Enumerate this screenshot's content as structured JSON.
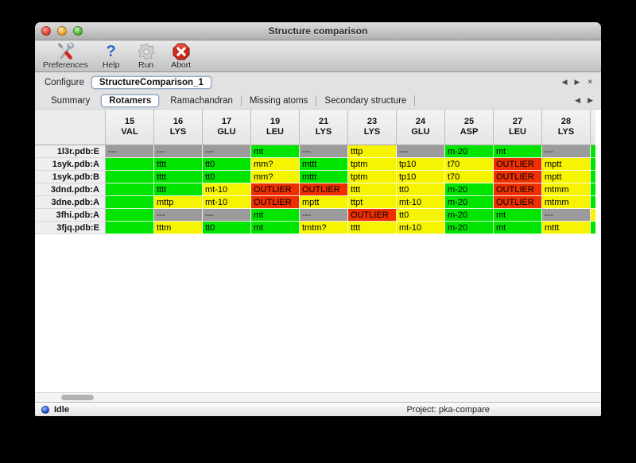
{
  "window": {
    "title": "Structure comparison"
  },
  "toolbar": {
    "items": [
      {
        "label": "Preferences",
        "icon": "tools-icon"
      },
      {
        "label": "Help",
        "icon": "help-icon"
      },
      {
        "label": "Run",
        "icon": "gear-icon"
      },
      {
        "label": "Abort",
        "icon": "abort-icon"
      }
    ],
    "help_glyph": "?"
  },
  "configure": {
    "label": "Configure",
    "value": "StructureComparison_1"
  },
  "nav": {
    "left_arrow": "◀",
    "right_arrow": "▶",
    "close": "✕"
  },
  "tabs": {
    "items": [
      "Summary",
      "Rotamers",
      "Ramachandran",
      "Missing atoms",
      "Secondary structure"
    ],
    "active": "Rotamers"
  },
  "table": {
    "palette": {
      "green": "#00e400",
      "yellow": "#f6f400",
      "red": "#ee3000",
      "gray": "#9b9b9b"
    },
    "columns": [
      {
        "num": "15",
        "res": "VAL"
      },
      {
        "num": "16",
        "res": "LYS"
      },
      {
        "num": "17",
        "res": "GLU"
      },
      {
        "num": "19",
        "res": "LEU"
      },
      {
        "num": "21",
        "res": "LYS"
      },
      {
        "num": "23",
        "res": "LYS"
      },
      {
        "num": "24",
        "res": "GLU"
      },
      {
        "num": "25",
        "res": "ASP"
      },
      {
        "num": "27",
        "res": "LEU"
      },
      {
        "num": "28",
        "res": "LYS"
      }
    ],
    "rows": [
      {
        "label": "1l3r.pdb:E",
        "overflow": "green",
        "cells": [
          {
            "t": "---",
            "s": "gray"
          },
          {
            "t": "---",
            "s": "gray"
          },
          {
            "t": "---",
            "s": "gray"
          },
          {
            "t": "mt",
            "s": "green"
          },
          {
            "t": "---",
            "s": "gray"
          },
          {
            "t": "tttp",
            "s": "yellow"
          },
          {
            "t": "---",
            "s": "gray"
          },
          {
            "t": "m-20",
            "s": "green"
          },
          {
            "t": "mt",
            "s": "green"
          },
          {
            "t": "---",
            "s": "gray"
          }
        ]
      },
      {
        "label": "1syk.pdb:A",
        "overflow": "green",
        "cells": [
          {
            "t": "",
            "s": "green"
          },
          {
            "t": "tttt",
            "s": "green"
          },
          {
            "t": "tt0",
            "s": "green"
          },
          {
            "t": "mm?",
            "s": "yellow"
          },
          {
            "t": "mttt",
            "s": "green"
          },
          {
            "t": "tptm",
            "s": "yellow"
          },
          {
            "t": "tp10",
            "s": "yellow"
          },
          {
            "t": "t70",
            "s": "yellow"
          },
          {
            "t": "OUTLIER",
            "s": "red"
          },
          {
            "t": "mptt",
            "s": "yellow"
          }
        ]
      },
      {
        "label": "1syk.pdb:B",
        "overflow": "green",
        "cells": [
          {
            "t": "",
            "s": "green"
          },
          {
            "t": "tttt",
            "s": "green"
          },
          {
            "t": "tt0",
            "s": "green"
          },
          {
            "t": "mm?",
            "s": "yellow"
          },
          {
            "t": "mttt",
            "s": "green"
          },
          {
            "t": "tptm",
            "s": "yellow"
          },
          {
            "t": "tp10",
            "s": "yellow"
          },
          {
            "t": "t70",
            "s": "yellow"
          },
          {
            "t": "OUTLIER",
            "s": "red"
          },
          {
            "t": "mptt",
            "s": "yellow"
          }
        ]
      },
      {
        "label": "3dnd.pdb:A",
        "overflow": "green",
        "cells": [
          {
            "t": "",
            "s": "green"
          },
          {
            "t": "tttt",
            "s": "green"
          },
          {
            "t": "mt-10",
            "s": "yellow"
          },
          {
            "t": "OUTLIER",
            "s": "red"
          },
          {
            "t": "OUTLIER",
            "s": "red"
          },
          {
            "t": "tttt",
            "s": "yellow"
          },
          {
            "t": "tt0",
            "s": "yellow"
          },
          {
            "t": "m-20",
            "s": "green"
          },
          {
            "t": "OUTLIER",
            "s": "red"
          },
          {
            "t": "mtmm",
            "s": "yellow"
          }
        ]
      },
      {
        "label": "3dne.pdb:A",
        "overflow": "green",
        "cells": [
          {
            "t": "",
            "s": "green"
          },
          {
            "t": "mttp",
            "s": "yellow"
          },
          {
            "t": "mt-10",
            "s": "yellow"
          },
          {
            "t": "OUTLIER",
            "s": "red"
          },
          {
            "t": "mptt",
            "s": "yellow"
          },
          {
            "t": "ttpt",
            "s": "yellow"
          },
          {
            "t": "mt-10",
            "s": "yellow"
          },
          {
            "t": "m-20",
            "s": "green"
          },
          {
            "t": "OUTLIER",
            "s": "red"
          },
          {
            "t": "mtmm",
            "s": "yellow"
          }
        ]
      },
      {
        "label": "3fhi.pdb:A",
        "overflow": "yellow",
        "cells": [
          {
            "t": "",
            "s": "green"
          },
          {
            "t": "---",
            "s": "gray"
          },
          {
            "t": "---",
            "s": "gray"
          },
          {
            "t": "mt",
            "s": "green"
          },
          {
            "t": "---",
            "s": "gray"
          },
          {
            "t": "OUTLIER",
            "s": "red"
          },
          {
            "t": "tt0",
            "s": "yellow"
          },
          {
            "t": "m-20",
            "s": "green"
          },
          {
            "t": "mt",
            "s": "green"
          },
          {
            "t": "---",
            "s": "gray"
          }
        ]
      },
      {
        "label": "3fjq.pdb:E",
        "overflow": "green",
        "cells": [
          {
            "t": "",
            "s": "green"
          },
          {
            "t": "tttm",
            "s": "yellow"
          },
          {
            "t": "tt0",
            "s": "green"
          },
          {
            "t": "mt",
            "s": "green"
          },
          {
            "t": "tmtm?",
            "s": "yellow"
          },
          {
            "t": "tttt",
            "s": "yellow"
          },
          {
            "t": "mt-10",
            "s": "yellow"
          },
          {
            "t": "m-20",
            "s": "green"
          },
          {
            "t": "mt",
            "s": "green"
          },
          {
            "t": "mttt",
            "s": "yellow"
          }
        ]
      }
    ]
  },
  "statusbar": {
    "status": "Idle",
    "project": "Project: pka-compare"
  }
}
